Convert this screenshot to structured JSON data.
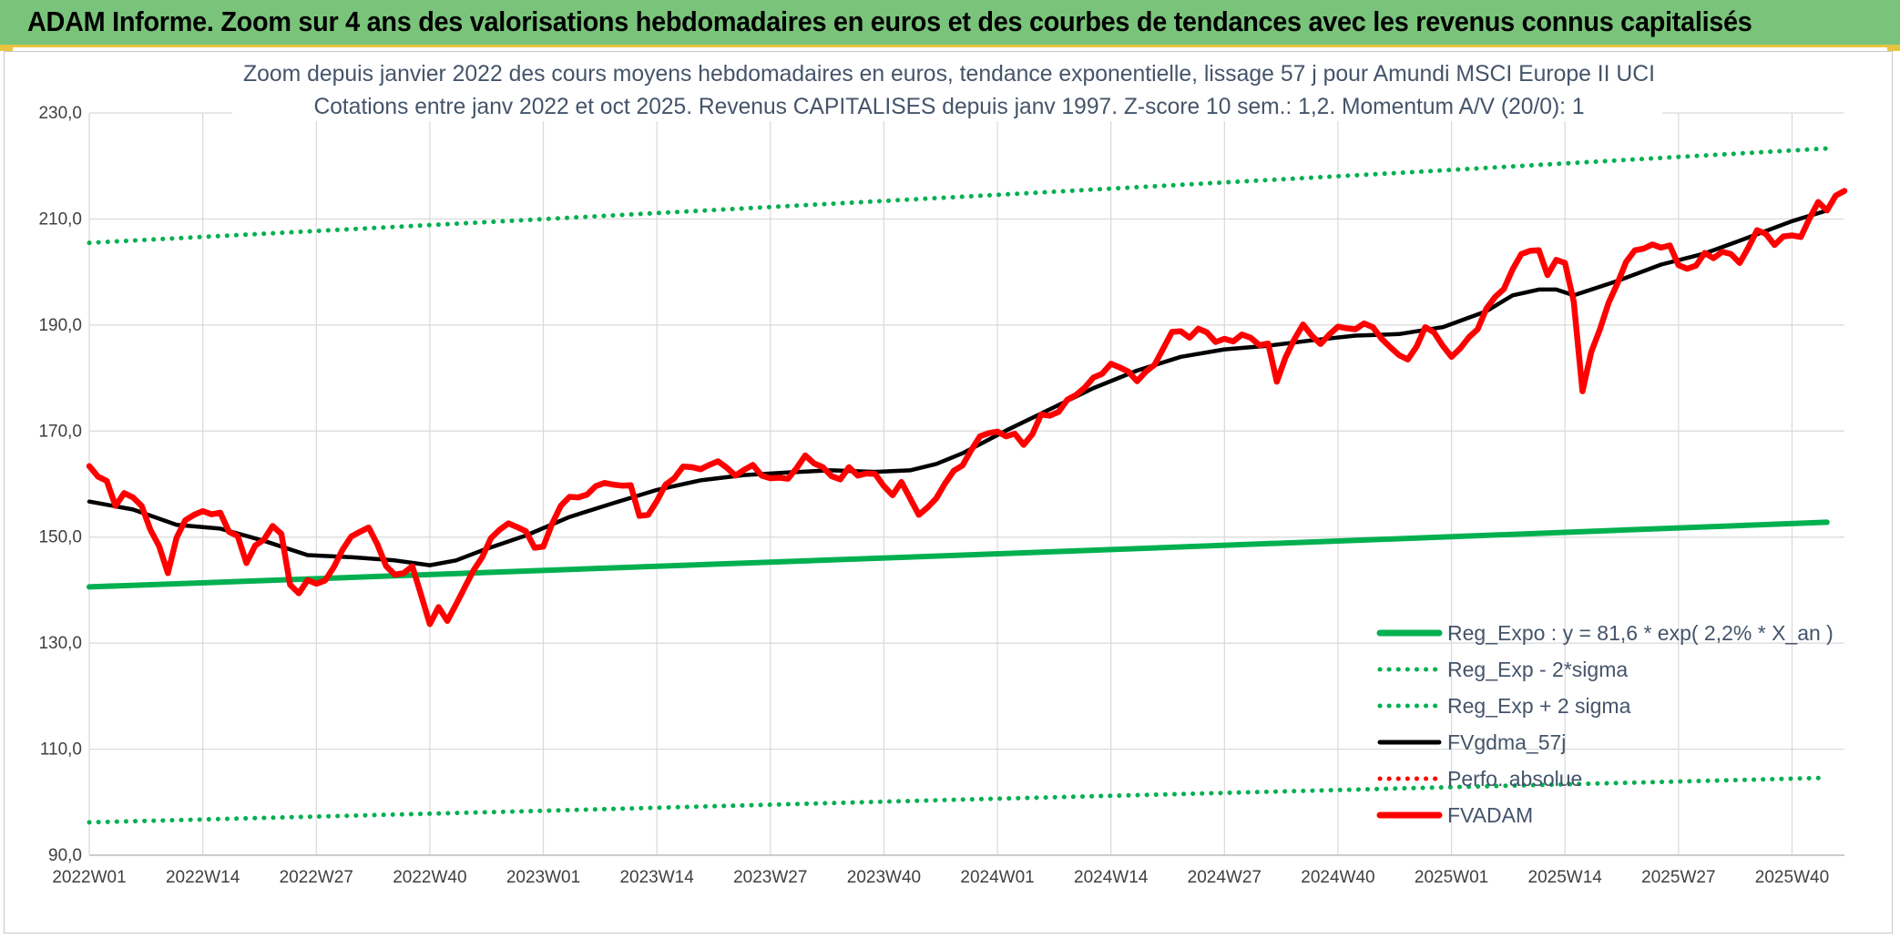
{
  "banner": {
    "title": "ADAM Informe. Zoom sur 4 ans des valorisations hebdomadaires en euros et des courbes de tendances avec les revenus connus capitalisés"
  },
  "chart_data": {
    "type": "line",
    "title": "Zoom depuis janvier 2022 des cours moyens hebdomadaires en euros, tendance exponentielle, lissage 57 j pour Amundi MSCI Europe II UCI",
    "subtitle": "Cotations entre janv 2022 et oct 2025. Revenus CAPITALISES depuis janv 1997. Z-score 10 sem.: 1,2. Momentum A/V (20/0): 1",
    "xlabel": "",
    "ylabel": "",
    "ylim": [
      90,
      230
    ],
    "yticks": [
      "90,0",
      "110,0",
      "130,0",
      "150,0",
      "170,0",
      "190,0",
      "210,0",
      "230,0"
    ],
    "xticks": [
      "2022W01",
      "2022W14",
      "2022W27",
      "2022W40",
      "2023W01",
      "2023W14",
      "2023W27",
      "2023W40",
      "2024W01",
      "2024W14",
      "2024W27",
      "2024W40",
      "2025W01",
      "2025W14",
      "2025W27",
      "2025W40"
    ],
    "xtick_index": [
      0,
      13,
      26,
      39,
      52,
      65,
      78,
      91,
      104,
      117,
      130,
      143,
      156,
      169,
      182,
      195
    ],
    "x_range": [
      0,
      199
    ],
    "grid": true,
    "legend_position": "bottom-right",
    "colors": {
      "green": "#00b050",
      "black": "#000000",
      "red": "#ff0000"
    },
    "legend": [
      {
        "label": "Reg_Expo : y = 81,6 * exp( 2,2% *  X_an )",
        "color": "#00b050",
        "style": "solid-thick"
      },
      {
        "label": "Reg_Exp - 2*sigma",
        "color": "#00b050",
        "style": "dotted"
      },
      {
        "label": "Reg_Exp + 2 sigma",
        "color": "#00b050",
        "style": "dotted"
      },
      {
        "label": "FVgdma_57j",
        "color": "#000000",
        "style": "solid"
      },
      {
        "label": "Perfo. absolue",
        "color": "#ff0000",
        "style": "dotted"
      },
      {
        "label": "FVADAM",
        "color": "#ff0000",
        "style": "solid-thick"
      }
    ],
    "series": [
      {
        "name": "Reg_Expo : y = 81,6 * exp( 2,2% *  X_an )",
        "color": "#00b050",
        "style": "solid",
        "points": [
          [
            0,
            140.6
          ],
          [
            50,
            143.6
          ],
          [
            100,
            146.6
          ],
          [
            150,
            149.7
          ],
          [
            199,
            152.8
          ]
        ]
      },
      {
        "name": "Reg_Exp - 2*sigma",
        "color": "#00b050",
        "style": "dotted",
        "points": [
          [
            0,
            96.2
          ],
          [
            50,
            98.3
          ],
          [
            100,
            100.5
          ],
          [
            150,
            102.6
          ],
          [
            199,
            104.6
          ]
        ]
      },
      {
        "name": "Reg_Exp + 2 sigma",
        "color": "#00b050",
        "style": "dotted",
        "points": [
          [
            0,
            205.5
          ],
          [
            50,
            209.8
          ],
          [
            100,
            214.2
          ],
          [
            150,
            218.7
          ],
          [
            199,
            223.3
          ]
        ]
      },
      {
        "name": "FVgdma_57j",
        "color": "#000000",
        "style": "solid",
        "points": [
          [
            0,
            156.7
          ],
          [
            5,
            155.2
          ],
          [
            10,
            152.3
          ],
          [
            15,
            151.6
          ],
          [
            20,
            149.3
          ],
          [
            25,
            146.6
          ],
          [
            30,
            146.2
          ],
          [
            35,
            145.6
          ],
          [
            39,
            144.7
          ],
          [
            42,
            145.6
          ],
          [
            45,
            147.5
          ],
          [
            50,
            150.3
          ],
          [
            55,
            153.8
          ],
          [
            60,
            156.4
          ],
          [
            65,
            158.9
          ],
          [
            70,
            160.7
          ],
          [
            75,
            161.7
          ],
          [
            80,
            162.2
          ],
          [
            85,
            162.6
          ],
          [
            90,
            162.3
          ],
          [
            94,
            162.6
          ],
          [
            97,
            163.8
          ],
          [
            100,
            165.8
          ],
          [
            105,
            170.1
          ],
          [
            110,
            174.1
          ],
          [
            115,
            178.1
          ],
          [
            120,
            181.4
          ],
          [
            125,
            184.0
          ],
          [
            130,
            185.4
          ],
          [
            135,
            186.1
          ],
          [
            140,
            187.1
          ],
          [
            145,
            188.0
          ],
          [
            150,
            188.3
          ],
          [
            155,
            189.6
          ],
          [
            160,
            192.6
          ],
          [
            163,
            195.6
          ],
          [
            166,
            196.7
          ],
          [
            168,
            196.7
          ],
          [
            170,
            195.6
          ],
          [
            175,
            198.3
          ],
          [
            180,
            201.4
          ],
          [
            185,
            203.5
          ],
          [
            190,
            206.5
          ],
          [
            195,
            209.6
          ],
          [
            199,
            211.6
          ]
        ]
      },
      {
        "name": "FVADAM",
        "color": "#ff0000",
        "style": "solid",
        "points": [
          [
            0,
            163.4
          ],
          [
            1,
            161.4
          ],
          [
            2,
            160.6
          ],
          [
            3,
            155.9
          ],
          [
            4,
            158.3
          ],
          [
            5,
            157.5
          ],
          [
            6,
            155.9
          ],
          [
            7,
            151.4
          ],
          [
            8,
            148.3
          ],
          [
            9,
            143.2
          ],
          [
            10,
            149.9
          ],
          [
            11,
            153.2
          ],
          [
            12,
            154.2
          ],
          [
            13,
            154.9
          ],
          [
            14,
            154.3
          ],
          [
            15,
            154.6
          ],
          [
            16,
            151.0
          ],
          [
            17,
            150.2
          ],
          [
            18,
            145.1
          ],
          [
            19,
            148.4
          ],
          [
            20,
            149.5
          ],
          [
            21,
            152.1
          ],
          [
            22,
            150.6
          ],
          [
            23,
            141.0
          ],
          [
            24,
            139.4
          ],
          [
            25,
            141.9
          ],
          [
            26,
            141.2
          ],
          [
            27,
            141.8
          ],
          [
            28,
            144.3
          ],
          [
            29,
            147.6
          ],
          [
            30,
            150.1
          ],
          [
            31,
            151.0
          ],
          [
            32,
            151.8
          ],
          [
            33,
            148.6
          ],
          [
            34,
            144.5
          ],
          [
            35,
            142.9
          ],
          [
            36,
            143.2
          ],
          [
            37,
            144.5
          ],
          [
            38,
            139.1
          ],
          [
            39,
            133.6
          ],
          [
            40,
            136.8
          ],
          [
            41,
            134.2
          ],
          [
            42,
            137.3
          ],
          [
            43,
            140.5
          ],
          [
            44,
            143.7
          ],
          [
            45,
            146.2
          ],
          [
            46,
            149.8
          ],
          [
            47,
            151.4
          ],
          [
            48,
            152.6
          ],
          [
            49,
            151.9
          ],
          [
            50,
            151.1
          ],
          [
            51,
            148.0
          ],
          [
            52,
            148.2
          ],
          [
            53,
            152.5
          ],
          [
            54,
            155.9
          ],
          [
            55,
            157.6
          ],
          [
            56,
            157.5
          ],
          [
            57,
            158.0
          ],
          [
            58,
            159.6
          ],
          [
            59,
            160.2
          ],
          [
            60,
            159.9
          ],
          [
            61,
            159.7
          ],
          [
            62,
            159.8
          ],
          [
            63,
            154.0
          ],
          [
            64,
            154.2
          ],
          [
            65,
            156.8
          ],
          [
            66,
            159.9
          ],
          [
            67,
            161.1
          ],
          [
            68,
            163.3
          ],
          [
            69,
            163.2
          ],
          [
            70,
            162.8
          ],
          [
            71,
            163.6
          ],
          [
            72,
            164.3
          ],
          [
            73,
            163.1
          ],
          [
            74,
            161.6
          ],
          [
            75,
            162.7
          ],
          [
            76,
            163.6
          ],
          [
            77,
            161.6
          ],
          [
            78,
            161.1
          ],
          [
            79,
            161.2
          ],
          [
            80,
            161.0
          ],
          [
            81,
            163.0
          ],
          [
            82,
            165.4
          ],
          [
            83,
            163.9
          ],
          [
            84,
            163.2
          ],
          [
            85,
            161.5
          ],
          [
            86,
            160.9
          ],
          [
            87,
            163.2
          ],
          [
            88,
            161.6
          ],
          [
            89,
            162.0
          ],
          [
            90,
            161.9
          ],
          [
            91,
            159.6
          ],
          [
            92,
            157.9
          ],
          [
            93,
            160.4
          ],
          [
            94,
            157.3
          ],
          [
            95,
            154.2
          ],
          [
            96,
            155.6
          ],
          [
            97,
            157.3
          ],
          [
            98,
            160.1
          ],
          [
            99,
            162.5
          ],
          [
            100,
            163.5
          ],
          [
            101,
            166.4
          ],
          [
            102,
            169.0
          ],
          [
            103,
            169.6
          ],
          [
            104,
            169.9
          ],
          [
            105,
            169.0
          ],
          [
            106,
            169.5
          ],
          [
            107,
            167.4
          ],
          [
            108,
            169.4
          ],
          [
            109,
            173.1
          ],
          [
            110,
            172.9
          ],
          [
            111,
            173.6
          ],
          [
            112,
            175.9
          ],
          [
            113,
            176.8
          ],
          [
            114,
            178.2
          ],
          [
            115,
            180.1
          ],
          [
            116,
            180.8
          ],
          [
            117,
            182.7
          ],
          [
            118,
            182.0
          ],
          [
            119,
            181.2
          ],
          [
            120,
            179.4
          ],
          [
            121,
            181.2
          ],
          [
            122,
            182.5
          ],
          [
            123,
            185.6
          ],
          [
            124,
            188.7
          ],
          [
            125,
            188.8
          ],
          [
            126,
            187.6
          ],
          [
            127,
            189.3
          ],
          [
            128,
            188.6
          ],
          [
            129,
            186.8
          ],
          [
            130,
            187.4
          ],
          [
            131,
            186.9
          ],
          [
            132,
            188.2
          ],
          [
            133,
            187.6
          ],
          [
            134,
            186.2
          ],
          [
            135,
            186.5
          ],
          [
            136,
            179.3
          ],
          [
            137,
            183.9
          ],
          [
            138,
            187.3
          ],
          [
            139,
            190.1
          ],
          [
            140,
            188.0
          ],
          [
            141,
            186.4
          ],
          [
            142,
            188.2
          ],
          [
            143,
            189.7
          ],
          [
            144,
            189.4
          ],
          [
            145,
            189.2
          ],
          [
            146,
            190.3
          ],
          [
            147,
            189.6
          ],
          [
            148,
            187.4
          ],
          [
            149,
            185.8
          ],
          [
            150,
            184.3
          ],
          [
            151,
            183.5
          ],
          [
            152,
            185.9
          ],
          [
            153,
            189.6
          ],
          [
            154,
            188.6
          ],
          [
            155,
            186.1
          ],
          [
            156,
            184.0
          ],
          [
            157,
            185.6
          ],
          [
            158,
            187.7
          ],
          [
            159,
            189.2
          ],
          [
            160,
            193.1
          ],
          [
            161,
            195.3
          ],
          [
            162,
            196.8
          ],
          [
            163,
            200.5
          ],
          [
            164,
            203.4
          ],
          [
            165,
            204.0
          ],
          [
            166,
            204.1
          ],
          [
            167,
            199.4
          ],
          [
            168,
            202.3
          ],
          [
            169,
            201.7
          ],
          [
            170,
            194.4
          ],
          [
            171,
            177.5
          ],
          [
            172,
            184.9
          ],
          [
            173,
            189.2
          ],
          [
            174,
            194.2
          ],
          [
            175,
            197.8
          ],
          [
            176,
            201.9
          ],
          [
            177,
            204.1
          ],
          [
            178,
            204.4
          ],
          [
            179,
            205.2
          ],
          [
            180,
            204.6
          ],
          [
            181,
            205.0
          ],
          [
            182,
            201.3
          ],
          [
            183,
            200.6
          ],
          [
            184,
            201.2
          ],
          [
            185,
            203.6
          ],
          [
            186,
            202.6
          ],
          [
            187,
            203.8
          ],
          [
            188,
            203.4
          ],
          [
            189,
            201.7
          ],
          [
            190,
            204.6
          ],
          [
            191,
            207.9
          ],
          [
            192,
            207.2
          ],
          [
            193,
            205.1
          ],
          [
            194,
            206.7
          ],
          [
            195,
            206.9
          ],
          [
            196,
            206.6
          ],
          [
            197,
            210.1
          ],
          [
            198,
            213.2
          ],
          [
            199,
            211.6
          ],
          [
            200,
            214.4
          ],
          [
            201,
            215.3
          ]
        ]
      }
    ]
  }
}
